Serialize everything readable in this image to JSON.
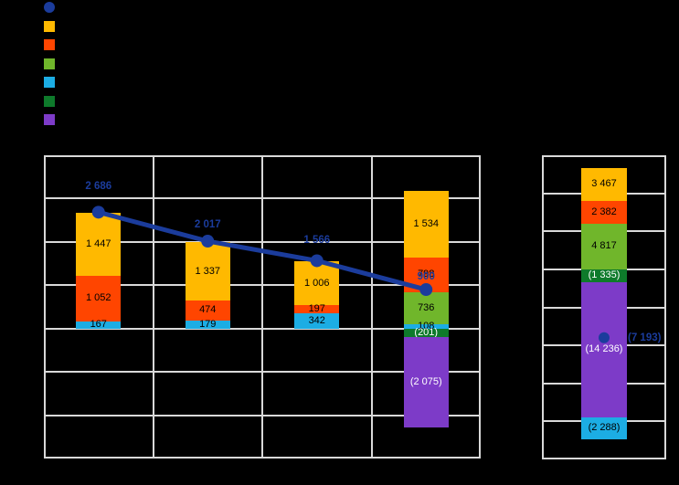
{
  "background": "#000000",
  "grid_color": "#D9D9D9",
  "palette": {
    "line": "#1B3C9C",
    "amber": "#FFB900",
    "red": "#FF4500",
    "green": "#70B62B",
    "cyan": "#1CADE4",
    "darkgreen": "#0E7A2B",
    "purple": "#7D3BC8"
  },
  "legend": {
    "items": [
      {
        "marker": "circle",
        "color_key": "line",
        "label": ""
      },
      {
        "marker": "square",
        "color_key": "amber",
        "label": ""
      },
      {
        "marker": "square",
        "color_key": "red",
        "label": ""
      },
      {
        "marker": "square",
        "color_key": "green",
        "label": ""
      },
      {
        "marker": "square",
        "color_key": "cyan",
        "label": ""
      },
      {
        "marker": "square",
        "color_key": "darkgreen",
        "label": ""
      },
      {
        "marker": "square",
        "color_key": "purple",
        "label": ""
      }
    ]
  },
  "chart_data": [
    {
      "type": "bar",
      "subtype": "stacked-bars-with-line-overlay",
      "title": "",
      "xlabel": "",
      "ylabel": "",
      "ylim": [
        -3000,
        4000
      ],
      "ytick_step": 1000,
      "grid": true,
      "categories": [
        "",
        "",
        "",
        ""
      ],
      "bars": [
        {
          "segments": [
            {
              "series": "amber",
              "value": 1447,
              "label": "1 447",
              "text_color": "#000000"
            },
            {
              "series": "red",
              "value": 1052,
              "label": "1 052",
              "text_color": "#000000"
            },
            {
              "series": "cyan",
              "value": 167,
              "label": "167",
              "text_color": "#000000"
            }
          ]
        },
        {
          "segments": [
            {
              "series": "amber",
              "value": 1337,
              "label": "1 337",
              "text_color": "#000000"
            },
            {
              "series": "red",
              "value": 474,
              "label": "474",
              "text_color": "#000000"
            },
            {
              "series": "cyan",
              "value": 179,
              "label": "179",
              "text_color": "#000000"
            }
          ]
        },
        {
          "segments": [
            {
              "series": "amber",
              "value": 1006,
              "label": "1 006",
              "text_color": "#000000"
            },
            {
              "series": "red",
              "value": 197,
              "label": "197",
              "text_color": "#000000"
            },
            {
              "series": "cyan",
              "value": 342,
              "label": "342",
              "text_color": "#000000"
            }
          ]
        },
        {
          "segments": [
            {
              "series": "amber",
              "value": 1534,
              "label": "1 534",
              "text_color": "#000000"
            },
            {
              "series": "red",
              "value": 798,
              "label": "798",
              "text_color": "#000000"
            },
            {
              "series": "green",
              "value": 736,
              "label": "736",
              "text_color": "#000000"
            },
            {
              "series": "cyan",
              "value": 108,
              "label": "108",
              "text_color": "#000000"
            },
            {
              "series": "darkgreen",
              "value": -201,
              "label": "(201)",
              "text_color": "#FFFFFF"
            },
            {
              "series": "purple",
              "value": -2075,
              "label": "(2 075)",
              "text_color": "#FFFFFF"
            }
          ]
        }
      ],
      "line_series": {
        "color_key": "line",
        "values": [
          2686,
          2017,
          1566,
          900
        ],
        "labels": [
          "2 686",
          "2 017",
          "1 566",
          "900"
        ]
      }
    },
    {
      "type": "bar",
      "subtype": "stacked-bar-with-point-overlay",
      "title": "",
      "xlabel": "",
      "ylabel": "",
      "ylim": [
        -20000,
        12000
      ],
      "ytick_step": 4000,
      "grid": true,
      "categories": [
        ""
      ],
      "bars": [
        {
          "segments": [
            {
              "series": "amber",
              "value": 3467,
              "label": "3 467",
              "text_color": "#000000"
            },
            {
              "series": "red",
              "value": 2382,
              "label": "2 382",
              "text_color": "#000000"
            },
            {
              "series": "green",
              "value": 4817,
              "label": "4 817",
              "text_color": "#000000"
            },
            {
              "series": "darkgreen",
              "value": -1335,
              "label": "(1 335)",
              "text_color": "#FFFFFF"
            },
            {
              "series": "purple",
              "value": -14236,
              "label": "(14 236)",
              "text_color": "#FFFFFF"
            },
            {
              "series": "cyan",
              "value": -2288,
              "label": "(2 288)",
              "text_color": "#000000"
            }
          ]
        }
      ],
      "point_series": {
        "color_key": "line",
        "values": [
          -7193
        ],
        "labels": [
          "(7 193)"
        ]
      }
    }
  ]
}
